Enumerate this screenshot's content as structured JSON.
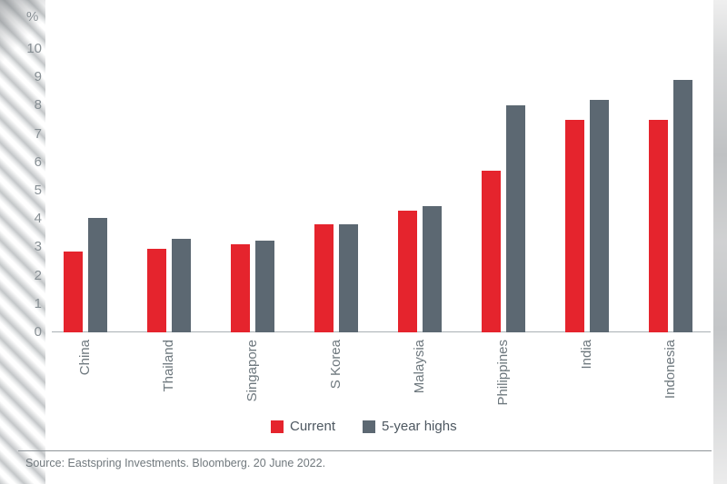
{
  "chart_data": {
    "type": "bar",
    "unit_label": "%",
    "categories": [
      "China",
      "Thailand",
      "Singapore",
      "S Korea",
      "Malaysia",
      "Philippines",
      "India",
      "Indonesia"
    ],
    "series": [
      {
        "name": "Current",
        "color": "#e5242d",
        "values": [
          2.85,
          2.95,
          3.1,
          3.8,
          4.3,
          5.7,
          7.5,
          7.5
        ]
      },
      {
        "name": "5-year highs",
        "color": "#5c6872",
        "values": [
          4.05,
          3.3,
          3.25,
          3.8,
          4.45,
          8.0,
          8.2,
          8.9
        ]
      }
    ],
    "ylim": [
      0,
      10
    ],
    "yticks": [
      0,
      1,
      2,
      3,
      4,
      5,
      6,
      7,
      8,
      9,
      10
    ],
    "grid": false,
    "legend_position": "bottom",
    "xlabel": "",
    "ylabel": "%"
  },
  "legend": {
    "current_label": "Current",
    "highs_label": "5-year highs"
  },
  "footer": {
    "source_text": "Source: Eastspring Investments. Bloomberg. 20 June 2022."
  }
}
